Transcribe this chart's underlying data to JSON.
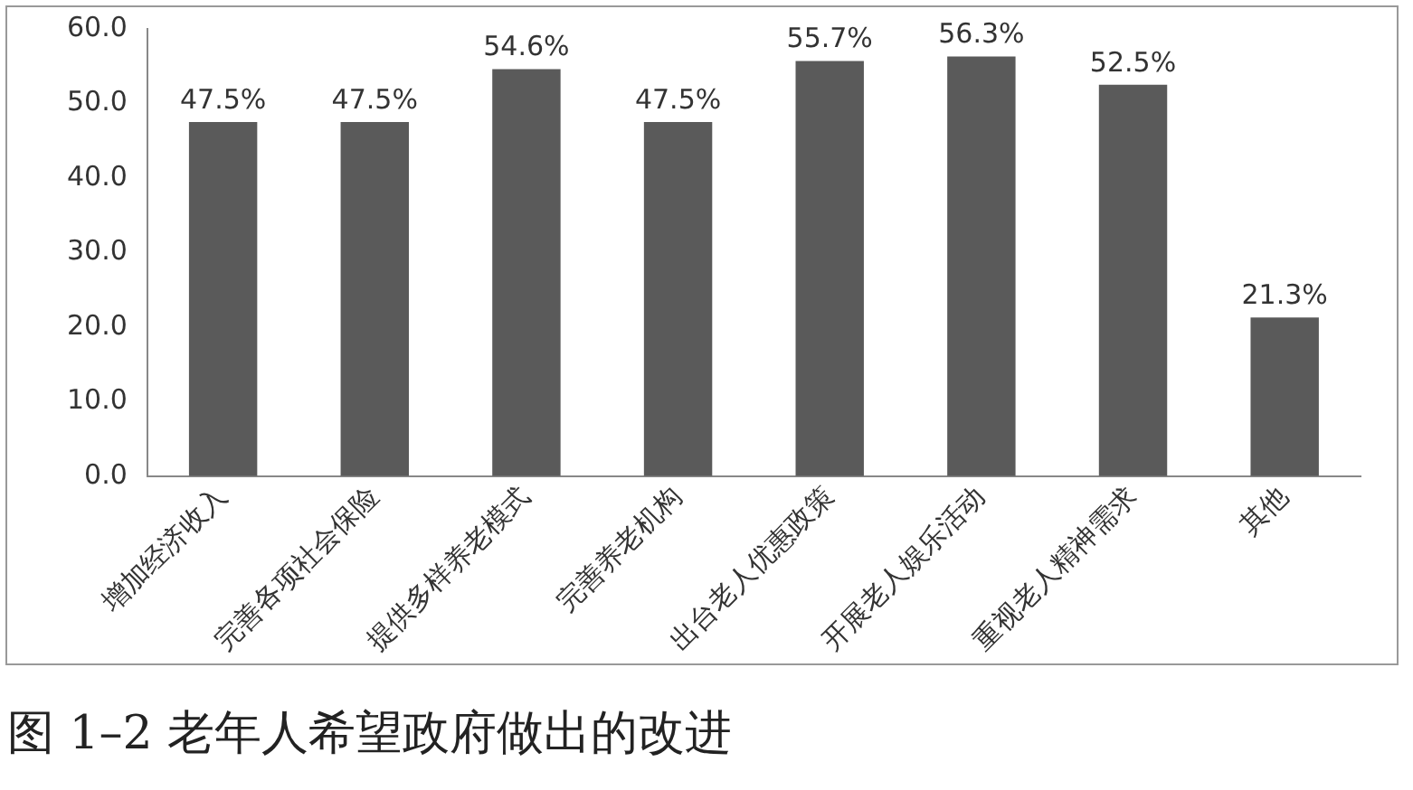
{
  "chart_data": {
    "type": "bar",
    "title": "图 1–2 老年人希望政府做出的改进",
    "categories": [
      "增加经济收入",
      "完善各项社会保险",
      "提供多样养老模式",
      "完善养老机构",
      "出台老人优惠政策",
      "开展老人娱乐活动",
      "重视老人精神需求",
      "其他"
    ],
    "values": [
      47.5,
      47.5,
      54.6,
      47.5,
      55.7,
      56.3,
      52.5,
      21.3
    ],
    "value_labels": [
      "47.5%",
      "47.5%",
      "54.6%",
      "47.5%",
      "55.7%",
      "56.3%",
      "52.5%",
      "21.3%"
    ],
    "color": "#5a5a5a",
    "ylim": [
      0,
      60
    ],
    "yticks": [
      {
        "value": 0,
        "label": "0.0"
      },
      {
        "value": 10,
        "label": "10.0"
      },
      {
        "value": 20,
        "label": "20.0"
      },
      {
        "value": 30,
        "label": "30.0"
      },
      {
        "value": 40,
        "label": "40.0"
      },
      {
        "value": 50,
        "label": "50.0"
      },
      {
        "value": 60,
        "label": "60.0"
      }
    ],
    "grid": false,
    "legend": false
  }
}
